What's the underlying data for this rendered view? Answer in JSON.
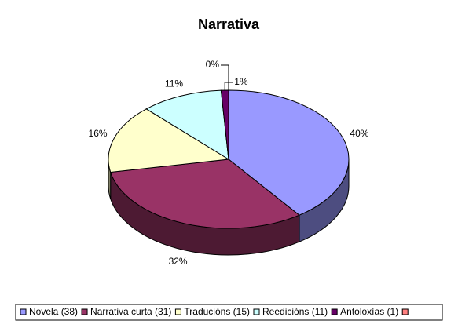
{
  "chart_data": {
    "type": "pie",
    "title": "Narrativa",
    "categories": [
      "Novela (38)",
      "Narrativa curta (31)",
      "Traducións (15)",
      "Reedicións (11)",
      "Antoloxías (1)",
      null
    ],
    "values": [
      40,
      32,
      16,
      11,
      1,
      0
    ],
    "value_labels": [
      "40%",
      "32%",
      "16%",
      "11%",
      "1%",
      "0%"
    ],
    "colors": [
      "#9999ff",
      "#993366",
      "#ffffcc",
      "#ccffff",
      "#660066",
      "#ff8080"
    ],
    "legend": "bottom"
  }
}
